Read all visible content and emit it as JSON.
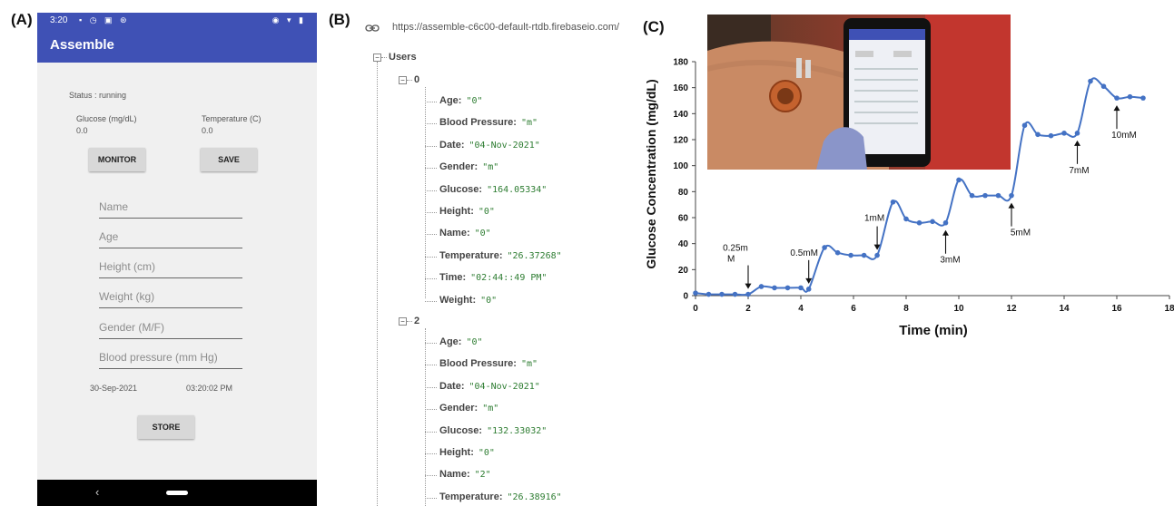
{
  "panels": {
    "a": "(A)",
    "b": "(B)",
    "c": "(C)"
  },
  "phone": {
    "status_time": "3:20",
    "app_title": "Assemble",
    "status": "Status : running",
    "glucose_label": "Glucose (mg/dL)",
    "glucose_value": "0.0",
    "temperature_label": "Temperature (C)",
    "temperature_value": "0.0",
    "monitor_button": "MONITOR",
    "save_button": "SAVE",
    "fields": [
      "Name",
      "Age",
      "Height (cm)",
      "Weight (kg)",
      "Gender (M/F)",
      "Blood pressure (mm Hg)"
    ],
    "date": "30-Sep-2021",
    "time": "03:20:02 PM",
    "store_button": "STORE",
    "back_glyph": "‹"
  },
  "firebase": {
    "url": "https://assemble-c6c00-default-rtdb.firebaseio.com/",
    "root": "Users",
    "users": [
      {
        "id": "0",
        "fields": [
          {
            "key": "Age:",
            "value": "\"0\""
          },
          {
            "key": "Blood Pressure:",
            "value": "\"m\""
          },
          {
            "key": "Date:",
            "value": "\"04-Nov-2021\""
          },
          {
            "key": "Gender:",
            "value": "\"m\""
          },
          {
            "key": "Glucose:",
            "value": "\"164.05334\""
          },
          {
            "key": "Height:",
            "value": "\"0\""
          },
          {
            "key": "Name:",
            "value": "\"0\""
          },
          {
            "key": "Temperature:",
            "value": "\"26.37268\""
          },
          {
            "key": "Time:",
            "value": "\"02:44::49 PM\""
          },
          {
            "key": "Weight:",
            "value": "\"0\""
          }
        ]
      },
      {
        "id": "2",
        "fields": [
          {
            "key": "Age:",
            "value": "\"0\""
          },
          {
            "key": "Blood Pressure:",
            "value": "\"m\""
          },
          {
            "key": "Date:",
            "value": "\"04-Nov-2021\""
          },
          {
            "key": "Gender:",
            "value": "\"m\""
          },
          {
            "key": "Glucose:",
            "value": "\"132.33032\""
          },
          {
            "key": "Height:",
            "value": "\"0\""
          },
          {
            "key": "Name:",
            "value": "\"2\""
          },
          {
            "key": "Temperature:",
            "value": "\"26.38916\""
          }
        ]
      }
    ]
  },
  "chart_data": {
    "type": "line",
    "title": "",
    "xlabel": "Time (min)",
    "ylabel": "Glucose Concentration (mg/dL)",
    "xlim": [
      0,
      18
    ],
    "ylim": [
      0,
      180
    ],
    "xticks": [
      0,
      2,
      4,
      6,
      8,
      10,
      12,
      14,
      16,
      18
    ],
    "xtick_labels": [
      "0",
      "2",
      "4",
      "6",
      "8",
      "10",
      "12",
      "14",
      "16",
      "18"
    ],
    "yticks": [
      0,
      20,
      40,
      60,
      80,
      100,
      120,
      140,
      160,
      180
    ],
    "line_color": "#4472c4",
    "series": [
      {
        "x": [
          0,
          0.5,
          1,
          1.5,
          2,
          2.5,
          3,
          3.5,
          4,
          4.3,
          4.9,
          5.4,
          5.9,
          6.4,
          6.9,
          7.5,
          8.0,
          8.5,
          9.0,
          9.5,
          10.0,
          10.5,
          11.0,
          11.5,
          12.0,
          12.5,
          13.0,
          13.5,
          14.0,
          14.5,
          15.0,
          15.5,
          16.0,
          16.5,
          17.0
        ],
        "y": [
          2,
          1,
          1,
          1,
          1,
          7,
          6,
          6,
          6,
          5,
          37,
          33,
          31,
          31,
          31,
          72,
          59,
          56,
          57,
          56,
          89,
          77,
          77,
          77,
          77,
          131,
          124,
          123,
          125,
          125,
          165,
          161,
          152,
          153,
          152
        ]
      }
    ],
    "annotations": [
      {
        "text": "0.25m",
        "text2": "M",
        "x": 2.0,
        "y": 1
      },
      {
        "text": "0.5mM",
        "x": 4.3,
        "y": 5
      },
      {
        "text": "1mM",
        "x": 6.9,
        "y": 31
      },
      {
        "text": "3mM",
        "x": 9.5,
        "y": 56
      },
      {
        "text": "5mM",
        "x": 12.0,
        "y": 77
      },
      {
        "text": "7mM",
        "x": 14.5,
        "y": 125
      },
      {
        "text": "10mM",
        "x": 16.0,
        "y": 152
      }
    ]
  }
}
